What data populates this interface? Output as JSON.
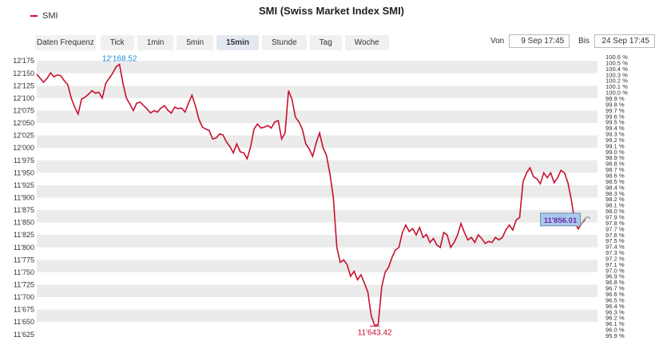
{
  "title": "SMI (Swiss Market Index SMI)",
  "legend": {
    "label": "SMI",
    "color": "#c8102e"
  },
  "toolbar": {
    "frequency_label": "Daten Frequenz",
    "buttons": [
      "Tick",
      "1min",
      "5min",
      "15min",
      "Stunde",
      "Tag",
      "Woche"
    ],
    "active": "15min"
  },
  "range": {
    "from_label": "Von",
    "from_value": "9 Sep 17:45",
    "to_label": "Bis",
    "to_value": "24 Sep 17:45"
  },
  "chart_data": {
    "type": "line",
    "series": [
      {
        "name": "SMI",
        "color": "#c8102e",
        "values": [
          12148,
          12140,
          12132,
          12140,
          12151,
          12143,
          12147,
          12145,
          12135,
          12127,
          12100,
          12082,
          12068,
          12098,
          12102,
          12108,
          12115,
          12110,
          12112,
          12100,
          12130,
          12140,
          12150,
          12163,
          12168,
          12130,
          12100,
          12088,
          12075,
          12090,
          12092,
          12085,
          12078,
          12070,
          12075,
          12072,
          12080,
          12085,
          12076,
          12070,
          12082,
          12079,
          12080,
          12072,
          12090,
          12106,
          12085,
          12058,
          12042,
          12038,
          12035,
          12018,
          12020,
          12028,
          12026,
          12012,
          12003,
          11990,
          12008,
          11992,
          11990,
          11978,
          12002,
          12038,
          12048,
          12040,
          12042,
          12045,
          12040,
          12052,
          12055,
          12018,
          12030,
          12115,
          12098,
          12062,
          12052,
          12038,
          12008,
          11998,
          11983,
          12010,
          12030,
          12000,
          11985,
          11948,
          11900,
          11800,
          11770,
          11775,
          11765,
          11742,
          11752,
          11735,
          11745,
          11728,
          11710,
          11662,
          11643,
          11645,
          11720,
          11750,
          11760,
          11780,
          11795,
          11800,
          11830,
          11845,
          11832,
          11838,
          11825,
          11840,
          11820,
          11826,
          11810,
          11818,
          11805,
          11800,
          11830,
          11825,
          11800,
          11810,
          11825,
          11848,
          11830,
          11815,
          11820,
          11810,
          11825,
          11818,
          11808,
          11812,
          11810,
          11820,
          11815,
          11820,
          11835,
          11845,
          11835,
          11855,
          11860,
          11932,
          11950,
          11960,
          11942,
          11938,
          11928,
          11950,
          11940,
          11950,
          11930,
          11940,
          11955,
          11950,
          11930,
          11895,
          11850,
          11837,
          11848,
          11856
        ]
      }
    ],
    "y_ticks": [
      12175,
      12150,
      12125,
      12100,
      12075,
      12050,
      12025,
      12000,
      11975,
      11950,
      11925,
      11900,
      11875,
      11850,
      11825,
      11800,
      11775,
      11750,
      11725,
      11700,
      11675,
      11650,
      11625
    ],
    "y_tick_labels": [
      "12'175",
      "12'150",
      "12'125",
      "12'100",
      "12'075",
      "12'050",
      "12'025",
      "12'000",
      "11'975",
      "11'950",
      "11'925",
      "11'900",
      "11'875",
      "11'850",
      "11'825",
      "11'800",
      "11'775",
      "11'750",
      "11'725",
      "11'700",
      "11'675",
      "11'650",
      "11'625"
    ],
    "ylim": [
      11615,
      12185
    ],
    "pct_labels": [
      "100.6 %",
      "100.5 %",
      "100.4 %",
      "100.3 %",
      "100.2 %",
      "100.1 %",
      "100.0 %",
      "99.9 %",
      "99.8 %",
      "99.7 %",
      "99.6 %",
      "99.5 %",
      "99.4 %",
      "99.3 %",
      "99.2 %",
      "99.1 %",
      "99.0 %",
      "98.9 %",
      "98.8 %",
      "98.7 %",
      "98.6 %",
      "98.5 %",
      "98.4 %",
      "98.3 %",
      "98.2 %",
      "98.1 %",
      "98.0 %",
      "97.9 %",
      "97.8 %",
      "97.7 %",
      "97.6 %",
      "97.5 %",
      "97.4 %",
      "97.3 %",
      "97.2 %",
      "97.1 %",
      "97.0 %",
      "96.9 %",
      "96.8 %",
      "96.7 %",
      "96.6 %",
      "96.5 %",
      "96.4 %",
      "96.3 %",
      "96.2 %",
      "96.1 %",
      "96.0 %",
      "95.9 %"
    ],
    "annotations": {
      "high": {
        "label": "12'168.52",
        "value": 12168.52
      },
      "low": {
        "label": "11'643.42",
        "value": 11643.42
      },
      "last": {
        "label": "11'856.01",
        "value": 11856.01
      }
    },
    "grid": true
  }
}
